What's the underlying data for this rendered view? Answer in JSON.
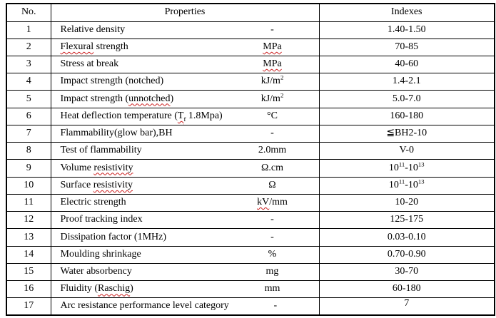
{
  "table": {
    "headers": {
      "no": "No.",
      "properties": "Properties",
      "indexes": "Indexes"
    },
    "rows": [
      {
        "no": "1",
        "name": [
          {
            "t": "Relative density"
          }
        ],
        "unit": [
          {
            "t": "-"
          }
        ],
        "index": [
          {
            "t": "1.40-1.50"
          }
        ]
      },
      {
        "no": "2",
        "name": [
          {
            "t": "Flexural",
            "wavy": true
          },
          {
            "t": " strength"
          }
        ],
        "unit": [
          {
            "t": "MPa",
            "wavy": true
          }
        ],
        "index": [
          {
            "t": "70-85"
          }
        ]
      },
      {
        "no": "3",
        "name": [
          {
            "t": "Stress at break"
          }
        ],
        "unit": [
          {
            "t": "MPa",
            "wavy": true
          }
        ],
        "index": [
          {
            "t": "40-60"
          }
        ]
      },
      {
        "no": "4",
        "name": [
          {
            "t": "Impact strength (notched)"
          }
        ],
        "unit": [
          {
            "t": "kJ/m"
          },
          {
            "t": "2",
            "sup": true
          }
        ],
        "index": [
          {
            "t": "1.4-2.1"
          }
        ]
      },
      {
        "no": "5",
        "name": [
          {
            "t": "Impact strength ("
          },
          {
            "t": "unnotched",
            "wavy": true
          },
          {
            "t": ")"
          }
        ],
        "unit": [
          {
            "t": "kJ/m"
          },
          {
            "t": "2",
            "sup": true
          }
        ],
        "index": [
          {
            "t": "5.0-7.0"
          }
        ]
      },
      {
        "no": "6",
        "name": [
          {
            "t": "Heat deflection temperature ("
          },
          {
            "t": "T",
            "wavy": true
          },
          {
            "t": "f",
            "sub": true,
            "wavy": true
          },
          {
            "t": " 1.8Mpa)"
          }
        ],
        "unit": [
          {
            "t": "°C"
          }
        ],
        "index": [
          {
            "t": "160-180"
          }
        ]
      },
      {
        "no": "7",
        "name": [
          {
            "t": "Flammability(glow bar),BH"
          }
        ],
        "unit": [
          {
            "t": "-"
          }
        ],
        "index": [
          {
            "t": "≦BH2-10"
          }
        ]
      },
      {
        "no": "8",
        "name": [
          {
            "t": "Test of flammability"
          }
        ],
        "unit": [
          {
            "t": "2.0mm"
          }
        ],
        "index": [
          {
            "t": "V-0"
          }
        ]
      },
      {
        "no": "9",
        "name": [
          {
            "t": "Volume "
          },
          {
            "t": "resistivity",
            "wavy": true
          }
        ],
        "unit": [
          {
            "t": "Ω.cm"
          }
        ],
        "index": [
          {
            "t": "10"
          },
          {
            "t": "11",
            "sup": true
          },
          {
            "t": "-10"
          },
          {
            "t": "13",
            "sup": true
          }
        ]
      },
      {
        "no": "10",
        "name": [
          {
            "t": "Surface "
          },
          {
            "t": "resistivity",
            "wavy": true
          }
        ],
        "unit": [
          {
            "t": "Ω"
          }
        ],
        "index": [
          {
            "t": "10"
          },
          {
            "t": "11",
            "sup": true
          },
          {
            "t": "-10"
          },
          {
            "t": "13",
            "sup": true
          }
        ]
      },
      {
        "no": "11",
        "name": [
          {
            "t": "Electric strength"
          }
        ],
        "unit": [
          {
            "t": "kV",
            "wavy": true
          },
          {
            "t": "/mm"
          }
        ],
        "index": [
          {
            "t": "10-20"
          }
        ]
      },
      {
        "no": "12",
        "name": [
          {
            "t": "Proof tracking index"
          }
        ],
        "unit": [
          {
            "t": "-"
          }
        ],
        "index": [
          {
            "t": "125-175"
          }
        ]
      },
      {
        "no": "13",
        "name": [
          {
            "t": "Dissipation factor (1MHz)"
          }
        ],
        "unit": [
          {
            "t": "-"
          }
        ],
        "index": [
          {
            "t": "0.03-0.10"
          }
        ]
      },
      {
        "no": "14",
        "name": [
          {
            "t": "Moulding shrinkage"
          }
        ],
        "unit": [
          {
            "t": "%"
          }
        ],
        "index": [
          {
            "t": "0.70-0.90"
          }
        ]
      },
      {
        "no": "15",
        "name": [
          {
            "t": "Water absorbency"
          }
        ],
        "unit": [
          {
            "t": "mg"
          }
        ],
        "index": [
          {
            "t": "30-70"
          }
        ]
      },
      {
        "no": "16",
        "name": [
          {
            "t": "Fluidity ("
          },
          {
            "t": "Raschig",
            "wavy": true
          },
          {
            "t": ")"
          }
        ],
        "unit": [
          {
            "t": "mm"
          }
        ],
        "index": [
          {
            "t": "60-180"
          }
        ]
      },
      {
        "no": "17",
        "name": [
          {
            "t": "Arc resistance performance level category"
          }
        ],
        "unit": [
          {
            "t": "-"
          }
        ],
        "index": [
          {
            "t": "7"
          }
        ],
        "top": true
      }
    ],
    "colors": {
      "border": "#000000",
      "squiggle": "#cc1f1f",
      "text": "#000000",
      "background": "#ffffff"
    }
  }
}
